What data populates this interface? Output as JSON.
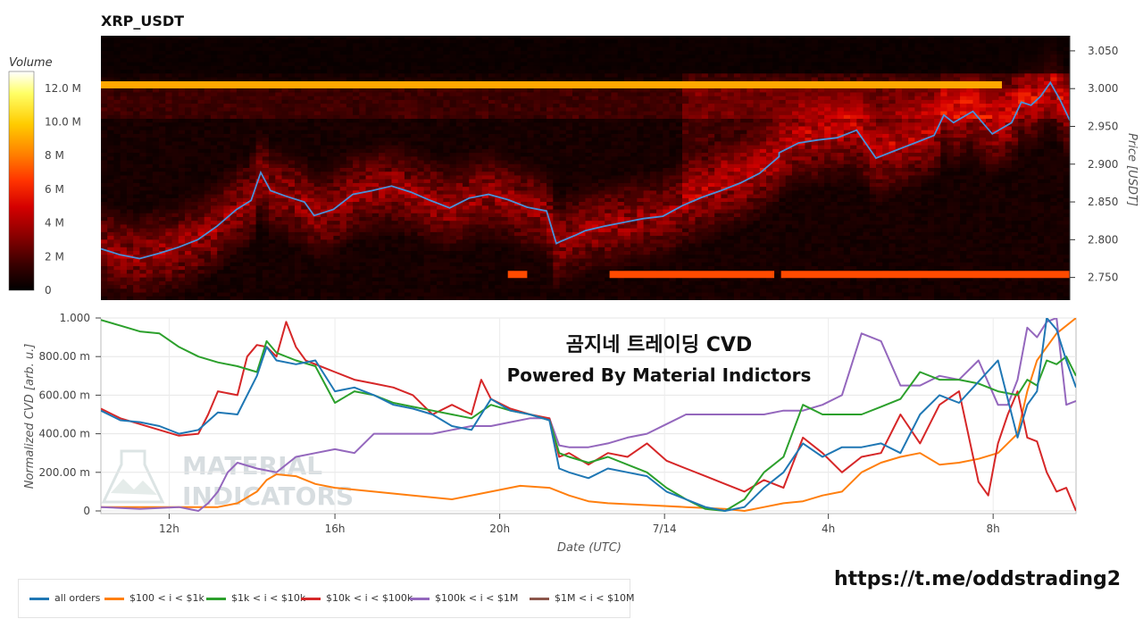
{
  "watermark": {
    "line1": "MATERIAL",
    "line2": "INDICATORS"
  },
  "overlay": {
    "title": "곰지네 트레이딩 CVD",
    "subtitle": "Powered By Material Indictors"
  },
  "footer": {
    "url": "https://t.me/oddstrading2"
  },
  "chart_data": [
    {
      "type": "heatmap",
      "title": "XRP_USDT",
      "ylabel": "Price [USDT]",
      "ylim": [
        2.72,
        3.07
      ],
      "yticks": [
        "2.750",
        "2.800",
        "2.850",
        "2.900",
        "2.950",
        "3.000",
        "3.050"
      ],
      "colorbar": {
        "title": "Volume",
        "range": [
          0,
          13
        ],
        "ticks": [
          "0",
          "2 M",
          "4 M",
          "6 M",
          "8 M",
          "10.0 M",
          "12.0 M"
        ],
        "colors": [
          "#000000",
          "#3a0000",
          "#8b0000",
          "#d40000",
          "#ff3300",
          "#ff7f00",
          "#ffcc00",
          "#ffff66",
          "#ffffff"
        ]
      },
      "walls": [
        {
          "price": 3.005,
          "x_start": 0,
          "x_end": 0.93,
          "volume": 9.0
        },
        {
          "price": 2.754,
          "x_start": 0.42,
          "x_end": 0.44,
          "volume": 7.0
        },
        {
          "price": 2.754,
          "x_start": 0.525,
          "x_end": 0.695,
          "volume": 7.0
        },
        {
          "price": 2.754,
          "x_start": 0.702,
          "x_end": 1.0,
          "volume": 7.0
        }
      ],
      "series": [
        {
          "name": "Price",
          "color": "#4a90d9",
          "x": [
            0,
            0.02,
            0.04,
            0.06,
            0.08,
            0.1,
            0.12,
            0.14,
            0.155,
            0.165,
            0.175,
            0.19,
            0.21,
            0.22,
            0.24,
            0.26,
            0.28,
            0.3,
            0.32,
            0.34,
            0.36,
            0.38,
            0.4,
            0.42,
            0.44,
            0.46,
            0.47,
            0.475,
            0.49,
            0.5,
            0.52,
            0.54,
            0.56,
            0.58,
            0.6,
            0.62,
            0.64,
            0.66,
            0.68,
            0.7,
            0.7,
            0.72,
            0.74,
            0.76,
            0.78,
            0.8,
            0.82,
            0.84,
            0.86,
            0.87,
            0.88,
            0.9,
            0.92,
            0.94,
            0.95,
            0.96,
            0.97,
            0.98,
            0.99,
            1.0
          ],
          "y": [
            2.788,
            2.78,
            2.775,
            2.782,
            2.79,
            2.8,
            2.818,
            2.84,
            2.852,
            2.889,
            2.865,
            2.858,
            2.85,
            2.832,
            2.84,
            2.86,
            2.865,
            2.871,
            2.863,
            2.852,
            2.842,
            2.855,
            2.86,
            2.853,
            2.843,
            2.838,
            2.795,
            2.798,
            2.806,
            2.812,
            2.818,
            2.823,
            2.828,
            2.831,
            2.845,
            2.856,
            2.865,
            2.875,
            2.888,
            2.91,
            2.915,
            2.928,
            2.932,
            2.935,
            2.945,
            2.908,
            2.918,
            2.928,
            2.938,
            2.965,
            2.955,
            2.97,
            2.94,
            2.955,
            2.982,
            2.978,
            2.99,
            3.008,
            2.985,
            2.958
          ]
        }
      ]
    },
    {
      "type": "line",
      "xlabel": "Date (UTC)",
      "ylabel": "Normalized CVD [arb. u.]",
      "xlim": [
        0,
        1
      ],
      "ylim": [
        0,
        1
      ],
      "x_ticks": [
        {
          "pos": 0.07,
          "label": "12h"
        },
        {
          "pos": 0.24,
          "label": "16h"
        },
        {
          "pos": 0.409,
          "label": "20h"
        },
        {
          "pos": 0.578,
          "label": "7/14"
        },
        {
          "pos": 0.746,
          "label": "4h"
        },
        {
          "pos": 0.915,
          "label": "8h"
        }
      ],
      "y_ticks": [
        {
          "value": 0,
          "label": "0"
        },
        {
          "value": 0.2,
          "label": "200.00 m"
        },
        {
          "value": 0.4,
          "label": "400.00 m"
        },
        {
          "value": 0.6,
          "label": "600.00 m"
        },
        {
          "value": 0.8,
          "label": "800.00 m"
        },
        {
          "value": 1.0,
          "label": "1.000"
        }
      ],
      "legend_position": "bottom",
      "series": [
        {
          "name": "all orders",
          "color": "#1f77b4",
          "x": [
            0,
            0.02,
            0.04,
            0.06,
            0.08,
            0.1,
            0.12,
            0.14,
            0.16,
            0.17,
            0.18,
            0.2,
            0.22,
            0.24,
            0.26,
            0.28,
            0.3,
            0.32,
            0.34,
            0.36,
            0.38,
            0.4,
            0.42,
            0.44,
            0.46,
            0.47,
            0.48,
            0.5,
            0.52,
            0.54,
            0.56,
            0.58,
            0.6,
            0.62,
            0.64,
            0.66,
            0.68,
            0.7,
            0.72,
            0.74,
            0.76,
            0.78,
            0.8,
            0.82,
            0.84,
            0.86,
            0.88,
            0.9,
            0.92,
            0.94,
            0.95,
            0.96,
            0.97,
            0.98,
            0.99,
            1.0
          ],
          "y": [
            0.52,
            0.47,
            0.46,
            0.44,
            0.4,
            0.42,
            0.51,
            0.5,
            0.7,
            0.85,
            0.78,
            0.76,
            0.78,
            0.62,
            0.64,
            0.6,
            0.55,
            0.53,
            0.5,
            0.44,
            0.42,
            0.58,
            0.52,
            0.5,
            0.47,
            0.22,
            0.2,
            0.17,
            0.22,
            0.2,
            0.18,
            0.1,
            0.06,
            0.02,
            0.0,
            0.02,
            0.12,
            0.2,
            0.35,
            0.28,
            0.33,
            0.33,
            0.35,
            0.3,
            0.5,
            0.6,
            0.56,
            0.67,
            0.78,
            0.38,
            0.55,
            0.62,
            1.0,
            0.94,
            0.78,
            0.64
          ]
        },
        {
          "name": "$100 < i < $1k",
          "color": "#ff7f0e",
          "x": [
            0,
            0.04,
            0.08,
            0.12,
            0.14,
            0.16,
            0.17,
            0.18,
            0.2,
            0.22,
            0.24,
            0.28,
            0.32,
            0.36,
            0.4,
            0.43,
            0.46,
            0.48,
            0.5,
            0.52,
            0.56,
            0.6,
            0.64,
            0.66,
            0.68,
            0.7,
            0.72,
            0.74,
            0.76,
            0.78,
            0.8,
            0.82,
            0.84,
            0.86,
            0.88,
            0.9,
            0.92,
            0.94,
            0.95,
            0.96,
            0.98,
            1.0
          ],
          "y": [
            0.02,
            0.02,
            0.02,
            0.02,
            0.04,
            0.1,
            0.16,
            0.19,
            0.18,
            0.14,
            0.12,
            0.1,
            0.08,
            0.06,
            0.1,
            0.13,
            0.12,
            0.08,
            0.05,
            0.04,
            0.03,
            0.02,
            0.01,
            0.0,
            0.02,
            0.04,
            0.05,
            0.08,
            0.1,
            0.2,
            0.25,
            0.28,
            0.3,
            0.24,
            0.25,
            0.27,
            0.3,
            0.4,
            0.62,
            0.78,
            0.92,
            1.0
          ]
        },
        {
          "name": "$1k < i < $10k",
          "color": "#2ca02c",
          "x": [
            0,
            0.02,
            0.04,
            0.06,
            0.08,
            0.1,
            0.12,
            0.14,
            0.16,
            0.17,
            0.18,
            0.2,
            0.22,
            0.24,
            0.26,
            0.28,
            0.3,
            0.32,
            0.34,
            0.36,
            0.38,
            0.4,
            0.42,
            0.44,
            0.46,
            0.47,
            0.48,
            0.5,
            0.52,
            0.54,
            0.56,
            0.58,
            0.6,
            0.62,
            0.64,
            0.66,
            0.68,
            0.7,
            0.72,
            0.74,
            0.76,
            0.78,
            0.8,
            0.82,
            0.84,
            0.86,
            0.88,
            0.9,
            0.92,
            0.94,
            0.95,
            0.96,
            0.97,
            0.98,
            0.99,
            1.0
          ],
          "y": [
            0.99,
            0.96,
            0.93,
            0.92,
            0.85,
            0.8,
            0.77,
            0.75,
            0.72,
            0.88,
            0.82,
            0.78,
            0.75,
            0.56,
            0.62,
            0.6,
            0.56,
            0.54,
            0.52,
            0.5,
            0.48,
            0.55,
            0.52,
            0.5,
            0.47,
            0.3,
            0.28,
            0.25,
            0.28,
            0.24,
            0.2,
            0.12,
            0.06,
            0.01,
            0.0,
            0.06,
            0.2,
            0.28,
            0.55,
            0.5,
            0.5,
            0.5,
            0.54,
            0.58,
            0.72,
            0.68,
            0.68,
            0.66,
            0.62,
            0.6,
            0.68,
            0.65,
            0.78,
            0.76,
            0.8,
            0.7
          ]
        },
        {
          "name": "$10k < i < $100k",
          "color": "#d62728",
          "x": [
            0,
            0.02,
            0.04,
            0.06,
            0.08,
            0.1,
            0.11,
            0.12,
            0.14,
            0.15,
            0.16,
            0.17,
            0.18,
            0.19,
            0.2,
            0.21,
            0.22,
            0.23,
            0.24,
            0.26,
            0.28,
            0.3,
            0.32,
            0.34,
            0.36,
            0.38,
            0.39,
            0.4,
            0.42,
            0.44,
            0.46,
            0.47,
            0.48,
            0.5,
            0.52,
            0.54,
            0.56,
            0.58,
            0.6,
            0.62,
            0.64,
            0.66,
            0.68,
            0.7,
            0.72,
            0.74,
            0.76,
            0.78,
            0.8,
            0.82,
            0.84,
            0.86,
            0.88,
            0.9,
            0.91,
            0.92,
            0.93,
            0.94,
            0.95,
            0.96,
            0.97,
            0.98,
            0.99,
            1.0
          ],
          "y": [
            0.53,
            0.48,
            0.45,
            0.42,
            0.39,
            0.4,
            0.5,
            0.62,
            0.6,
            0.8,
            0.86,
            0.85,
            0.8,
            0.98,
            0.85,
            0.78,
            0.76,
            0.74,
            0.72,
            0.68,
            0.66,
            0.64,
            0.6,
            0.5,
            0.55,
            0.5,
            0.68,
            0.58,
            0.53,
            0.5,
            0.48,
            0.28,
            0.3,
            0.24,
            0.3,
            0.28,
            0.35,
            0.26,
            0.22,
            0.18,
            0.14,
            0.1,
            0.16,
            0.12,
            0.38,
            0.3,
            0.2,
            0.28,
            0.3,
            0.5,
            0.35,
            0.55,
            0.62,
            0.15,
            0.08,
            0.35,
            0.5,
            0.62,
            0.38,
            0.36,
            0.2,
            0.1,
            0.12,
            0.0
          ]
        },
        {
          "name": "$100k < i < $1M",
          "color": "#9467bd",
          "x": [
            0,
            0.04,
            0.08,
            0.1,
            0.11,
            0.12,
            0.13,
            0.14,
            0.16,
            0.18,
            0.2,
            0.22,
            0.24,
            0.26,
            0.28,
            0.3,
            0.32,
            0.34,
            0.36,
            0.38,
            0.4,
            0.42,
            0.44,
            0.46,
            0.47,
            0.48,
            0.5,
            0.52,
            0.54,
            0.56,
            0.58,
            0.6,
            0.62,
            0.64,
            0.66,
            0.68,
            0.7,
            0.72,
            0.74,
            0.76,
            0.78,
            0.8,
            0.82,
            0.84,
            0.86,
            0.88,
            0.9,
            0.92,
            0.93,
            0.94,
            0.95,
            0.96,
            0.97,
            0.98,
            0.99,
            1.0
          ],
          "y": [
            0.02,
            0.01,
            0.02,
            0.0,
            0.04,
            0.1,
            0.2,
            0.25,
            0.22,
            0.2,
            0.28,
            0.3,
            0.32,
            0.3,
            0.4,
            0.4,
            0.4,
            0.4,
            0.42,
            0.44,
            0.44,
            0.46,
            0.48,
            0.48,
            0.34,
            0.33,
            0.33,
            0.35,
            0.38,
            0.4,
            0.45,
            0.5,
            0.5,
            0.5,
            0.5,
            0.5,
            0.52,
            0.52,
            0.55,
            0.6,
            0.92,
            0.88,
            0.65,
            0.65,
            0.7,
            0.68,
            0.78,
            0.55,
            0.55,
            0.68,
            0.95,
            0.9,
            0.98,
            1.0,
            0.55,
            0.57
          ]
        },
        {
          "name": "$1M < i < $10M",
          "color": "#8c564b",
          "x": [],
          "y": []
        }
      ]
    }
  ]
}
